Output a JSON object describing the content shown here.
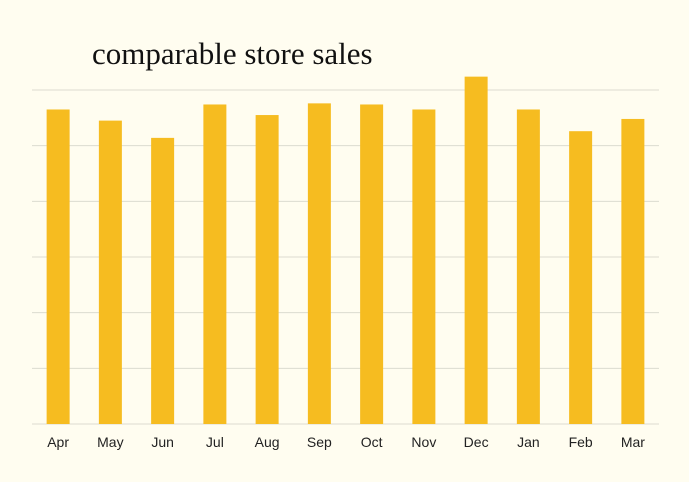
{
  "chart_data": {
    "type": "bar",
    "title": "comparable store sales",
    "xlabel": "",
    "ylabel": "",
    "categories": [
      "Apr",
      "May",
      "Jun",
      "Jul",
      "Aug",
      "Sep",
      "Oct",
      "Nov",
      "Dec",
      "Jan",
      "Feb",
      "Mar"
    ],
    "values": [
      5.65,
      5.45,
      5.14,
      5.74,
      5.55,
      5.76,
      5.74,
      5.65,
      6.24,
      5.65,
      5.26,
      5.48
    ],
    "ylim": [
      0,
      6
    ],
    "grid": true,
    "y_tick_labels_shown": false,
    "colors": {
      "bar": "#f6bc20",
      "grid": "#dcdcd0",
      "background": "#fffdf0",
      "text": "#111111"
    }
  }
}
